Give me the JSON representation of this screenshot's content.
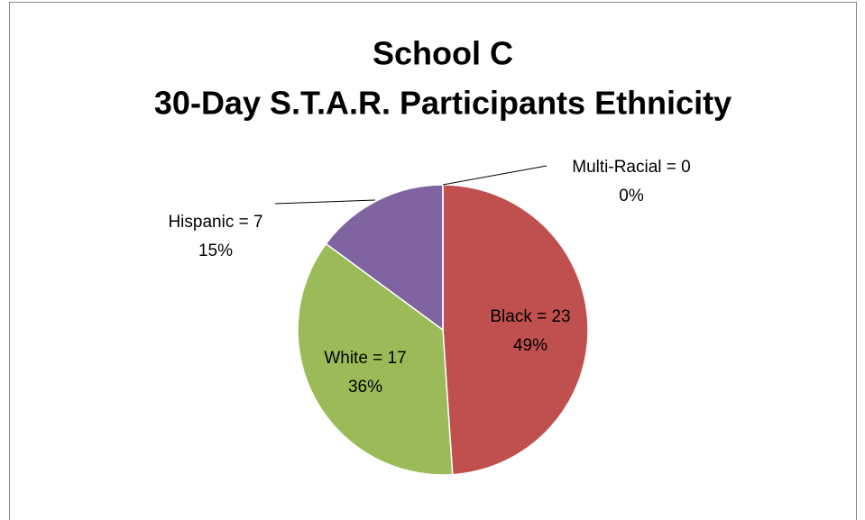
{
  "chart_data": {
    "type": "pie",
    "title": "School C",
    "subtitle": "30-Day S.T.A.R. Participants Ethnicity",
    "categories": [
      "Black = 23",
      "White = 17",
      "Hispanic = 7",
      "Multi-Racial = 0"
    ],
    "values": [
      23,
      17,
      7,
      0
    ],
    "value_labels": [
      "49%",
      "36%",
      "15%",
      "0%"
    ],
    "colors": [
      "#c0504d",
      "#9bbb59",
      "#8064a2",
      "#4bacc6"
    ]
  }
}
